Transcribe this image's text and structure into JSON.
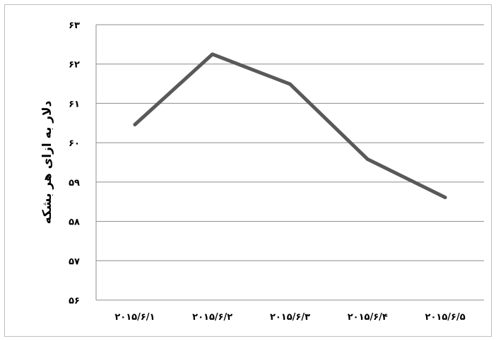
{
  "chart_data": {
    "type": "line",
    "title": "",
    "xlabel": "",
    "ylabel": "دلار به ازای هر بشکه",
    "categories": [
      "۲۰۱۵/۶/۱",
      "۲۰۱۵/۶/۲",
      "۲۰۱۵/۶/۳",
      "۲۰۱۵/۶/۴",
      "۲۰۱۵/۶/۵"
    ],
    "y_ticks": [
      "۵۶",
      "۵۷",
      "۵۸",
      "۵۹",
      "۶۰",
      "۶۱",
      "۶۲",
      "۶۳"
    ],
    "ylim": [
      56,
      63
    ],
    "series": [
      {
        "values": [
          60.46,
          62.25,
          61.49,
          59.58,
          58.61
        ],
        "color": "#595959"
      }
    ],
    "grid": true,
    "legend": "none"
  }
}
